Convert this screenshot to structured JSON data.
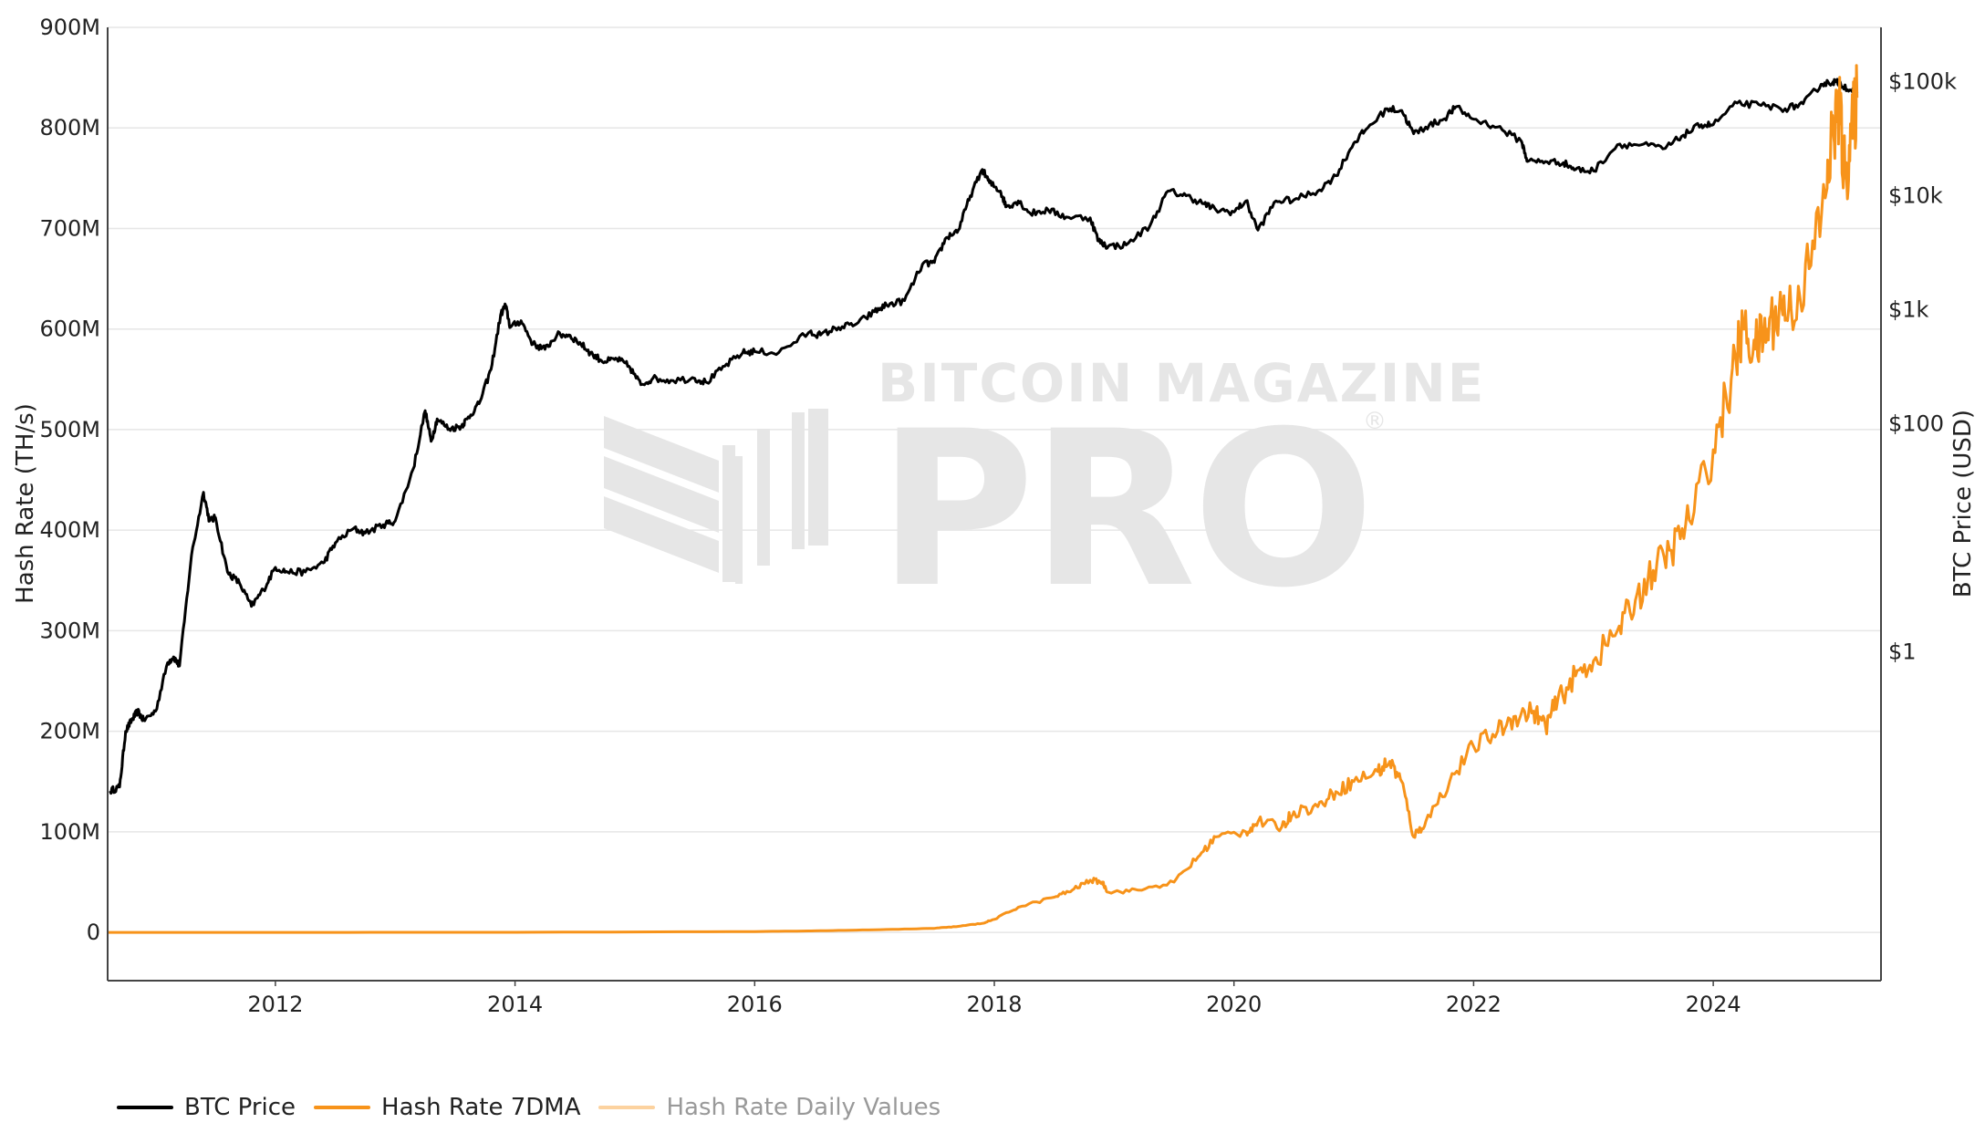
{
  "colors": {
    "btc_price": "#000000",
    "hash_rate_7dma": "#f7931a",
    "hash_rate_daily": "#fcd29f",
    "grid": "#e6e6e6",
    "watermark": "#e2e2e2"
  },
  "watermark": {
    "line1": "BITCOIN MAGAZINE",
    "line2": "PRO",
    "mark": "®"
  },
  "legend": [
    {
      "label": "BTC Price",
      "color": "#000000"
    },
    {
      "label": "Hash Rate 7DMA",
      "color": "#f7931a"
    },
    {
      "label": "Hash Rate Daily Values",
      "color": "#fcd29f"
    }
  ],
  "chart_data": {
    "type": "line",
    "title": "",
    "xlabel": "",
    "ylabel": "Hash Rate (TH/s)",
    "y2label": "BTC Price (USD)",
    "xlim": [
      2010.6,
      2025.4
    ],
    "ylim": [
      -48000000,
      900000000
    ],
    "y2_scale": "log",
    "y2lim": [
      0.0013,
      300000
    ],
    "x_ticks": [
      2012,
      2014,
      2016,
      2018,
      2020,
      2022,
      2024
    ],
    "x_tick_labels": [
      "2012",
      "2014",
      "2016",
      "2018",
      "2020",
      "2022",
      "2024"
    ],
    "y_ticks": [
      0,
      100000000,
      200000000,
      300000000,
      400000000,
      500000000,
      600000000,
      700000000,
      800000000,
      900000000
    ],
    "y_tick_labels": [
      "0",
      "100M",
      "200M",
      "300M",
      "400M",
      "500M",
      "600M",
      "700M",
      "800M",
      "900M"
    ],
    "y2_ticks": [
      1,
      100,
      1000,
      10000,
      100000
    ],
    "y2_tick_labels": [
      "$1",
      "$100",
      "$1k",
      "$10k",
      "$100k"
    ],
    "legend_position": "bottom-left",
    "series": [
      {
        "name": "BTC Price",
        "axis": "right",
        "color": "#000000",
        "x": [
          2010.62,
          2010.7,
          2010.75,
          2010.8,
          2010.85,
          2010.9,
          2011.0,
          2011.1,
          2011.15,
          2011.2,
          2011.3,
          2011.4,
          2011.45,
          2011.5,
          2011.6,
          2011.7,
          2011.8,
          2011.9,
          2012.0,
          2012.1,
          2012.25,
          2012.4,
          2012.5,
          2012.65,
          2012.75,
          2012.9,
          2013.0,
          2013.15,
          2013.25,
          2013.3,
          2013.35,
          2013.45,
          2013.55,
          2013.6,
          2013.7,
          2013.8,
          2013.88,
          2013.92,
          2013.96,
          2014.05,
          2014.15,
          2014.25,
          2014.35,
          2014.45,
          2014.55,
          2014.65,
          2014.75,
          2014.85,
          2014.95,
          2015.05,
          2015.15,
          2015.3,
          2015.5,
          2015.6,
          2015.75,
          2015.9,
          2016.0,
          2016.2,
          2016.45,
          2016.55,
          2016.7,
          2016.85,
          2017.0,
          2017.1,
          2017.25,
          2017.4,
          2017.5,
          2017.6,
          2017.7,
          2017.8,
          2017.9,
          2017.96,
          2018.05,
          2018.1,
          2018.2,
          2018.3,
          2018.45,
          2018.6,
          2018.8,
          2018.87,
          2018.95,
          2019.1,
          2019.3,
          2019.45,
          2019.6,
          2019.75,
          2019.85,
          2020.0,
          2020.1,
          2020.2,
          2020.35,
          2020.5,
          2020.7,
          2020.85,
          2021.0,
          2021.1,
          2021.28,
          2021.4,
          2021.5,
          2021.6,
          2021.75,
          2021.85,
          2022.0,
          2022.2,
          2022.4,
          2022.45,
          2022.6,
          2022.75,
          2022.85,
          2023.0,
          2023.2,
          2023.4,
          2023.6,
          2023.75,
          2023.9,
          2024.0,
          2024.2,
          2024.4,
          2024.6,
          2024.75,
          2024.9,
          2025.0,
          2025.05,
          2025.15,
          2025.2
        ],
        "y": [
          0.06,
          0.065,
          0.2,
          0.25,
          0.3,
          0.25,
          0.3,
          0.8,
          0.9,
          0.75,
          7,
          25,
          14,
          15,
          5,
          4,
          2.5,
          3.5,
          5.5,
          5,
          5,
          6,
          9,
          12,
          11,
          13,
          14,
          40,
          130,
          70,
          110,
          90,
          95,
          110,
          150,
          300,
          900,
          1100,
          700,
          800,
          500,
          450,
          600,
          600,
          500,
          400,
          350,
          370,
          320,
          220,
          250,
          240,
          250,
          230,
          320,
          420,
          430,
          420,
          630,
          600,
          700,
          750,
          960,
          1100,
          1200,
          2500,
          2600,
          4300,
          5000,
          10000,
          17000,
          13000,
          11000,
          8000,
          9000,
          7000,
          7500,
          6500,
          6400,
          4000,
          3600,
          3700,
          5500,
          11000,
          10000,
          8500,
          7500,
          7200,
          9000,
          5000,
          9000,
          9200,
          11000,
          15000,
          29000,
          38000,
          58000,
          56000,
          35000,
          40000,
          47000,
          60000,
          47000,
          40000,
          30000,
          20000,
          20000,
          19500,
          17000,
          16500,
          28000,
          28000,
          26000,
          34000,
          42000,
          42000,
          65000,
          62000,
          58000,
          64000,
          95000,
          100000,
          98000,
          84000,
          80000
        ]
      },
      {
        "name": "Hash Rate 7DMA",
        "axis": "left",
        "color": "#f7931a",
        "x": [
          2010.6,
          2012.0,
          2014.0,
          2016.0,
          2016.5,
          2017.0,
          2017.5,
          2017.7,
          2017.9,
          2018.0,
          2018.2,
          2018.5,
          2018.65,
          2018.8,
          2018.9,
          2018.95,
          2019.2,
          2019.5,
          2019.7,
          2019.85,
          2020.1,
          2020.2,
          2020.4,
          2020.5,
          2020.7,
          2020.85,
          2021.0,
          2021.2,
          2021.3,
          2021.4,
          2021.5,
          2021.6,
          2021.8,
          2022.0,
          2022.2,
          2022.35,
          2022.5,
          2022.6,
          2022.7,
          2022.85,
          2023.0,
          2023.2,
          2023.35,
          2023.5,
          2023.65,
          2023.8,
          2024.0,
          2024.15,
          2024.25,
          2024.35,
          2024.45,
          2024.55,
          2024.65,
          2024.8,
          2024.95,
          2025.0,
          2025.05,
          2025.1,
          2025.15,
          2025.2
        ],
        "y": [
          0,
          0,
          100000,
          800000,
          1500000,
          2500000,
          4000000,
          6000000,
          9000000,
          13000000,
          25000000,
          35000000,
          42000000,
          52000000,
          50000000,
          40000000,
          42000000,
          50000000,
          75000000,
          95000000,
          100000000,
          110000000,
          105000000,
          120000000,
          125000000,
          140000000,
          150000000,
          160000000,
          170000000,
          150000000,
          95000000,
          110000000,
          150000000,
          185000000,
          200000000,
          215000000,
          220000000,
          205000000,
          230000000,
          255000000,
          270000000,
          300000000,
          330000000,
          360000000,
          380000000,
          410000000,
          480000000,
          550000000,
          600000000,
          580000000,
          600000000,
          620000000,
          620000000,
          660000000,
          740000000,
          800000000,
          820000000,
          750000000,
          790000000,
          830000000
        ]
      },
      {
        "name": "Hash Rate Daily Values",
        "axis": "left",
        "color": "#fcd29f",
        "x": [],
        "y": []
      }
    ]
  }
}
